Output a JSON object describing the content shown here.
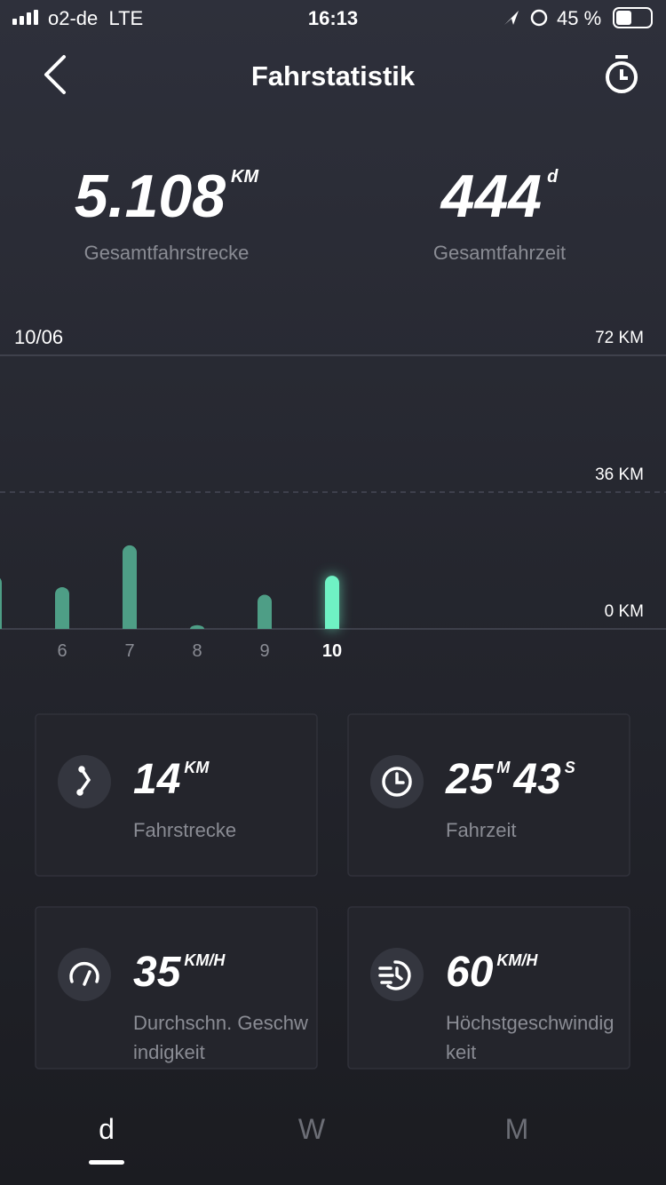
{
  "status_bar": {
    "carrier": "o2-de",
    "network": "LTE",
    "time": "16:13",
    "battery": "45 %"
  },
  "header": {
    "title": "Fahrstatistik"
  },
  "summary": [
    {
      "value": "5.108",
      "unit": "KM",
      "label": "Gesamtfahrstrecke"
    },
    {
      "value": "444",
      "unit": "d",
      "label": "Gesamtfahrzeit"
    }
  ],
  "chart_data": {
    "type": "bar",
    "period_label": "10/06",
    "categories": [
      null,
      "6",
      "7",
      "8",
      "9",
      "10"
    ],
    "values": [
      14,
      11,
      22,
      1,
      9,
      14
    ],
    "colors": [
      "#4e9e86",
      "#4e9e86",
      "#4e9e86",
      "#4e9e86",
      "#4e9e86",
      "#6ff2c4"
    ],
    "highlight_index": 5,
    "ylim": [
      0,
      72
    ],
    "yticks": [
      {
        "value": 0,
        "label": "0 KM"
      },
      {
        "value": 36,
        "label": "36 KM"
      },
      {
        "value": 72,
        "label": "72 KM"
      }
    ],
    "grid": true
  },
  "cards": [
    {
      "parts": [
        {
          "value": "14",
          "unit": "KM"
        }
      ],
      "label": "Fahrstrecke"
    },
    {
      "parts": [
        {
          "value": "25",
          "unit": "M"
        },
        {
          "value": "43",
          "unit": "S"
        }
      ],
      "label": "Fahrzeit"
    },
    {
      "parts": [
        {
          "value": "35",
          "unit": "KM/H"
        }
      ],
      "label": "Durchschn. Geschwindigkeit"
    },
    {
      "parts": [
        {
          "value": "60",
          "unit": "KM/H"
        }
      ],
      "label": "Höchstgeschwindigkeit"
    }
  ],
  "tabs": {
    "items": [
      "d",
      "W",
      "M"
    ],
    "active": 0
  }
}
